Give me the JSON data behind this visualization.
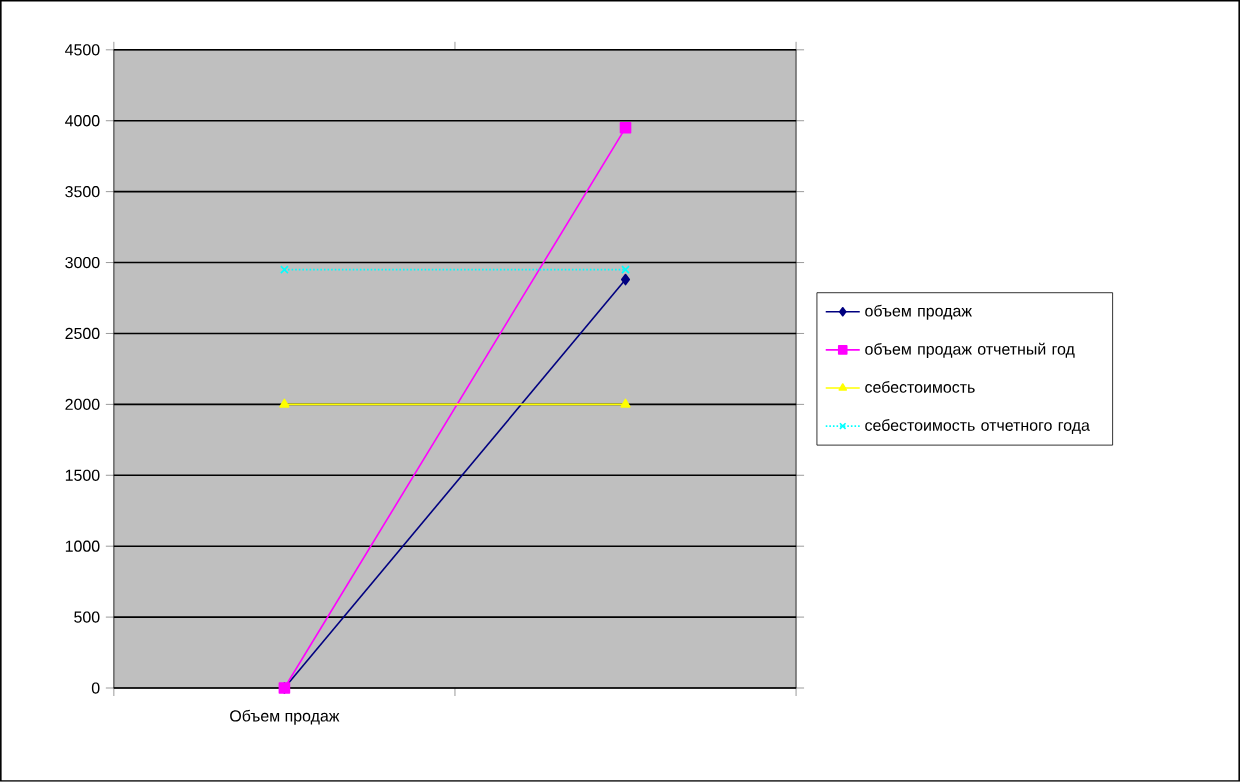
{
  "chart_data": {
    "type": "line",
    "categories": [
      "Объем продаж",
      null
    ],
    "series": [
      {
        "name": "объем продаж",
        "color": "#000080",
        "values": [
          0,
          2880
        ],
        "marker": "diamond",
        "line_style": "solid"
      },
      {
        "name": "объем продаж отчетный год",
        "color": "#ff00ff",
        "values": [
          0,
          3950
        ],
        "marker": "square",
        "line_style": "solid"
      },
      {
        "name": "себестоимость",
        "color": "#ffff00",
        "values": [
          2000,
          2000
        ],
        "marker": "triangle",
        "line_style": "solid"
      },
      {
        "name": "себестоимость отчетного года",
        "color": "#00ffff",
        "values": [
          2950,
          2950
        ],
        "marker": "cross",
        "line_style": "dotted"
      }
    ],
    "ylim": [
      0,
      4500
    ],
    "yticks": [
      0,
      500,
      1000,
      1500,
      2000,
      2500,
      3000,
      3500,
      4000,
      4500
    ],
    "grid": "y",
    "legend": "right"
  }
}
